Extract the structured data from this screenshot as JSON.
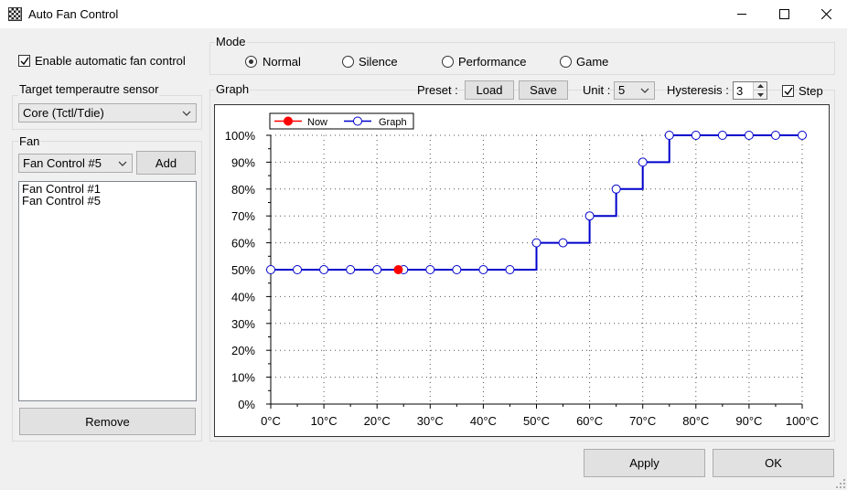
{
  "window": {
    "title": "Auto Fan Control"
  },
  "enable_checkbox": {
    "label": "Enable automatic fan control",
    "checked": true
  },
  "target_sensor": {
    "group_label": "Target temperautre sensor",
    "selected": "Core (Tctl/Tdie)"
  },
  "fan": {
    "group_label": "Fan",
    "selected": "Fan Control #5",
    "add_label": "Add",
    "items": [
      "Fan Control #1",
      "Fan Control #5"
    ],
    "remove_label": "Remove"
  },
  "mode": {
    "group_label": "Mode",
    "options": [
      {
        "label": "Normal",
        "checked": true
      },
      {
        "label": "Silence",
        "checked": false
      },
      {
        "label": "Performance",
        "checked": false
      },
      {
        "label": "Game",
        "checked": false
      }
    ]
  },
  "graph_toolbar": {
    "group_label": "Graph",
    "preset_label": "Preset :",
    "load_label": "Load",
    "save_label": "Save",
    "unit_label": "Unit :",
    "unit_value": "5",
    "hysteresis_label": "Hysteresis :",
    "hysteresis_value": "3",
    "step_label": "Step",
    "step_checked": true
  },
  "footer": {
    "apply_label": "Apply",
    "ok_label": "OK"
  },
  "chart_data": {
    "type": "line",
    "legend": [
      {
        "name": "Now",
        "color": "#ff0000"
      },
      {
        "name": "Graph",
        "color": "#0000cc"
      }
    ],
    "legend_position": "top-left",
    "grid": true,
    "step": true,
    "xlim": [
      0,
      100
    ],
    "ylim": [
      0,
      100
    ],
    "x_ticks": [
      "0°C",
      "10°C",
      "20°C",
      "30°C",
      "40°C",
      "50°C",
      "60°C",
      "70°C",
      "80°C",
      "90°C",
      "100°C"
    ],
    "y_ticks": [
      "0%",
      "10%",
      "20%",
      "30%",
      "40%",
      "50%",
      "60%",
      "70%",
      "80%",
      "90%",
      "100%"
    ],
    "series": [
      {
        "name": "Graph",
        "color": "#0000cc",
        "x": [
          0,
          5,
          10,
          15,
          20,
          25,
          30,
          35,
          40,
          45,
          50,
          55,
          60,
          65,
          70,
          75,
          80,
          85,
          90,
          95,
          100
        ],
        "y": [
          50,
          50,
          50,
          50,
          50,
          50,
          50,
          50,
          50,
          50,
          60,
          60,
          70,
          80,
          90,
          100,
          100,
          100,
          100,
          100,
          100
        ]
      },
      {
        "name": "Now",
        "color": "#ff0000",
        "x": [
          24
        ],
        "y": [
          50
        ]
      }
    ]
  }
}
